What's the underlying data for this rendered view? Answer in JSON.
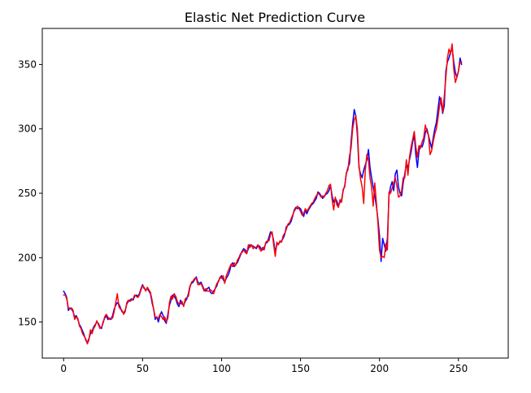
{
  "chart_data": {
    "type": "line",
    "title": "Elastic Net Prediction Curve",
    "xlabel": "",
    "ylabel": "",
    "xlim": [
      -13.5,
      281.5
    ],
    "ylim": [
      122,
      378
    ],
    "xticks": [
      0,
      50,
      100,
      150,
      200,
      250
    ],
    "yticks": [
      150,
      200,
      250,
      300,
      350
    ],
    "xtick_labels": [
      "0",
      "50",
      "100",
      "150",
      "200",
      "250"
    ],
    "ytick_labels": [
      "150",
      "200",
      "250",
      "300",
      "350"
    ],
    "grid": false,
    "legend": "none",
    "series": [
      {
        "color": "#0000ff",
        "values": [
          174,
          172,
          169,
          159,
          161,
          160,
          158,
          154,
          155,
          152,
          148,
          146,
          143,
          140,
          136,
          134,
          137,
          141,
          143,
          146,
          148,
          150,
          149,
          146,
          145,
          150,
          153,
          155,
          152,
          153,
          152,
          155,
          160,
          163,
          165,
          164,
          161,
          158,
          157,
          159,
          164,
          166,
          167,
          168,
          167,
          170,
          171,
          170,
          172,
          176,
          179,
          176,
          175,
          176,
          174,
          172,
          165,
          160,
          152,
          154,
          150,
          155,
          158,
          155,
          151,
          149,
          156,
          163,
          167,
          171,
          170,
          168,
          164,
          162,
          167,
          164,
          163,
          166,
          168,
          172,
          178,
          180,
          181,
          183,
          185,
          181,
          180,
          181,
          178,
          175,
          174,
          176,
          177,
          173,
          172,
          174,
          176,
          178,
          182,
          184,
          186,
          183,
          181,
          184,
          186,
          189,
          194,
          196,
          193,
          195,
          196,
          199,
          202,
          205,
          207,
          206,
          204,
          207,
          210,
          209,
          209,
          208,
          207,
          209,
          209,
          207,
          206,
          208,
          211,
          212,
          216,
          220,
          219,
          213,
          204,
          210,
          211,
          212,
          213,
          215,
          218,
          224,
          225,
          226,
          228,
          232,
          237,
          239,
          238,
          239,
          238,
          235,
          232,
          237,
          234,
          237,
          239,
          241,
          242,
          244,
          246,
          251,
          250,
          248,
          246,
          248,
          249,
          250,
          252,
          256,
          248,
          243,
          246,
          244,
          240,
          243,
          245,
          252,
          256,
          265,
          270,
          273,
          290,
          304,
          315,
          310,
          295,
          270,
          265,
          262,
          268,
          272,
          276,
          284,
          270,
          262,
          255,
          248,
          240,
          230,
          217,
          197,
          215,
          210,
          205,
          215,
          248,
          255,
          259,
          252,
          265,
          268,
          255,
          250,
          248,
          258,
          265,
          273,
          270,
          276,
          282,
          290,
          295,
          280,
          270,
          283,
          287,
          286,
          290,
          297,
          300,
          295,
          290,
          285,
          293,
          300,
          305,
          315,
          325,
          320,
          312,
          318,
          345,
          352,
          355,
          360,
          363,
          352,
          344,
          340,
          345,
          355,
          350
        ]
      },
      {
        "color": "#ff0000",
        "values": [
          171,
          171,
          168,
          161,
          160,
          161,
          159,
          152,
          154,
          153,
          147,
          145,
          141,
          139,
          137,
          133,
          136,
          144,
          141,
          145,
          147,
          151,
          148,
          145,
          146,
          149,
          154,
          156,
          154,
          152,
          153,
          153,
          158,
          165,
          172,
          162,
          160,
          159,
          156,
          158,
          165,
          167,
          166,
          167,
          168,
          171,
          170,
          169,
          171,
          175,
          178,
          177,
          174,
          177,
          175,
          173,
          167,
          160,
          154,
          153,
          153,
          156,
          154,
          152,
          154,
          150,
          153,
          165,
          170,
          168,
          172,
          170,
          166,
          164,
          164,
          166,
          162,
          168,
          169,
          170,
          177,
          181,
          182,
          184,
          184,
          179,
          179,
          180,
          177,
          174,
          176,
          174,
          174,
          175,
          174,
          172,
          176,
          180,
          181,
          185,
          184,
          186,
          180,
          186,
          189,
          192,
          195,
          193,
          196,
          194,
          198,
          200,
          203,
          204,
          206,
          204,
          203,
          210,
          208,
          210,
          207,
          208,
          208,
          210,
          207,
          205,
          208,
          206,
          212,
          213,
          213,
          218,
          220,
          210,
          201,
          212,
          210,
          213,
          212,
          217,
          219,
          222,
          226,
          227,
          230,
          233,
          236,
          238,
          240,
          238,
          236,
          233,
          234,
          238,
          236,
          238,
          240,
          242,
          243,
          246,
          248,
          250,
          249,
          247,
          248,
          247,
          250,
          252,
          256,
          257,
          245,
          237,
          247,
          241,
          239,
          245,
          243,
          253,
          255,
          266,
          268,
          279,
          285,
          300,
          307,
          310,
          300,
          272,
          261,
          255,
          242,
          268,
          280,
          276,
          262,
          255,
          240,
          258,
          243,
          227,
          206,
          200,
          201,
          200,
          211,
          206,
          251,
          250,
          254,
          258,
          262,
          256,
          247,
          248,
          252,
          262,
          262,
          276,
          264,
          278,
          286,
          292,
          298,
          286,
          278,
          287,
          285,
          290,
          293,
          303,
          298,
          295,
          280,
          283,
          290,
          296,
          300,
          308,
          318,
          324,
          313,
          325,
          340,
          355,
          362,
          358,
          366,
          347,
          336,
          340,
          345,
          352,
          352
        ]
      }
    ]
  }
}
